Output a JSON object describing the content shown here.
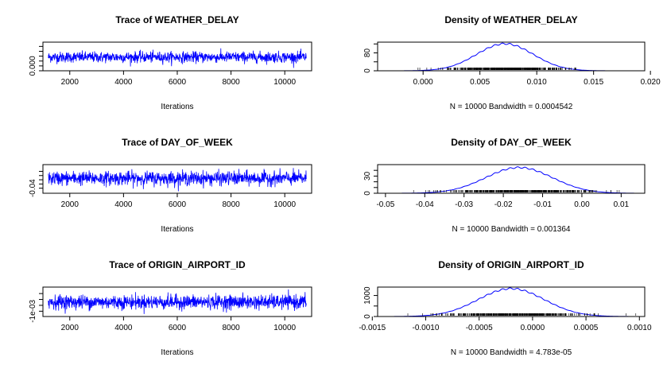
{
  "colors": {
    "series": "#0000ff",
    "axis": "#000000",
    "background": "#ffffff"
  },
  "chart_data": [
    {
      "type": "line",
      "title": "Trace of WEATHER_DELAY",
      "xlabel": "Iterations",
      "x_range": [
        1001,
        11000
      ],
      "xticks": [
        2000,
        4000,
        6000,
        8000,
        10000
      ],
      "xtick_labels": [
        "2000",
        "4000",
        "6000",
        "8000",
        "10000"
      ],
      "ylim": [
        -0.004,
        0.0195
      ],
      "yticks": [
        -0.004,
        0.0,
        0.004,
        0.008,
        0.012,
        0.016
      ],
      "ytick_labels": [
        "",
        "0.000",
        "",
        "",
        "",
        ""
      ],
      "series_mean": 0.0072,
      "series_sd": 0.0022
    },
    {
      "type": "area",
      "title": "Density of WEATHER_DELAY",
      "xlabel": "N = 10000   Bandwidth = 0.0004542",
      "x_range": [
        -0.004,
        0.0195
      ],
      "xticks": [
        0.0,
        0.005,
        0.01,
        0.015,
        0.02
      ],
      "xtick_labels": [
        "0.000",
        "0.005",
        "0.010",
        "0.015",
        "0.020"
      ],
      "ylim": [
        0,
        128
      ],
      "yticks": [
        0,
        40,
        80,
        120
      ],
      "ytick_labels": [
        "0",
        "",
        "80",
        ""
      ],
      "peak_x": 0.0072,
      "peak_y": 121,
      "spread": 0.0025
    },
    {
      "type": "line",
      "title": "Trace of DAY_OF_WEEK",
      "xlabel": "Iterations",
      "x_range": [
        1001,
        11000
      ],
      "xticks": [
        2000,
        4000,
        6000,
        8000,
        10000
      ],
      "xtick_labels": [
        "2000",
        "4000",
        "6000",
        "8000",
        "10000"
      ],
      "ylim": [
        -0.052,
        0.016
      ],
      "yticks": [
        -0.04,
        -0.03,
        -0.02,
        -0.01,
        0.0
      ],
      "ytick_labels": [
        "-0.04",
        "",
        "",
        "",
        ""
      ],
      "series_mean": -0.0165,
      "series_sd": 0.0082
    },
    {
      "type": "area",
      "title": "Density of DAY_OF_WEEK",
      "xlabel": "N = 10000   Bandwidth = 0.001364",
      "x_range": [
        -0.052,
        0.016
      ],
      "xticks": [
        -0.05,
        -0.04,
        -0.03,
        -0.02,
        -0.01,
        0.0,
        0.01
      ],
      "xtick_labels": [
        "-0.05",
        "-0.04",
        "-0.03",
        "-0.02",
        "-0.01",
        "0.00",
        "0.01"
      ],
      "ylim": [
        0,
        50
      ],
      "yticks": [
        0,
        10,
        20,
        30,
        40
      ],
      "ytick_labels": [
        "0",
        "",
        "",
        "30",
        ""
      ],
      "peak_x": -0.016,
      "peak_y": 45,
      "spread": 0.0085
    },
    {
      "type": "line",
      "title": "Trace of ORIGIN_AIRPORT_ID",
      "xlabel": "Iterations",
      "x_range": [
        1001,
        11000
      ],
      "xticks": [
        2000,
        4000,
        6000,
        8000,
        10000
      ],
      "xtick_labels": [
        "2000",
        "4000",
        "6000",
        "8000",
        "10000"
      ],
      "ylim": [
        -0.00145,
        0.00105
      ],
      "yticks": [
        -0.001,
        -0.0005,
        0.0,
        0.0005
      ],
      "ytick_labels": [
        "-1e-03",
        "",
        "",
        ""
      ],
      "series_mean": -0.00022,
      "series_sd": 0.0003
    },
    {
      "type": "area",
      "title": "Density of ORIGIN_AIRPORT_ID",
      "xlabel": "N = 10000   Bandwidth = 4.783e-05",
      "x_range": [
        -0.00145,
        0.00105
      ],
      "xticks": [
        -0.0015,
        -0.001,
        -0.0005,
        0.0,
        0.0005,
        0.001
      ],
      "xtick_labels": [
        "-0.0015",
        "-0.0010",
        "-0.0005",
        "0.0000",
        "0.0005",
        "0.0010"
      ],
      "ylim": [
        0,
        1400
      ],
      "yticks": [
        0,
        500,
        1000
      ],
      "ytick_labels": [
        "0",
        "",
        "1000"
      ],
      "peak_x": -0.0002,
      "peak_y": 1330,
      "spread": 0.00031
    }
  ]
}
